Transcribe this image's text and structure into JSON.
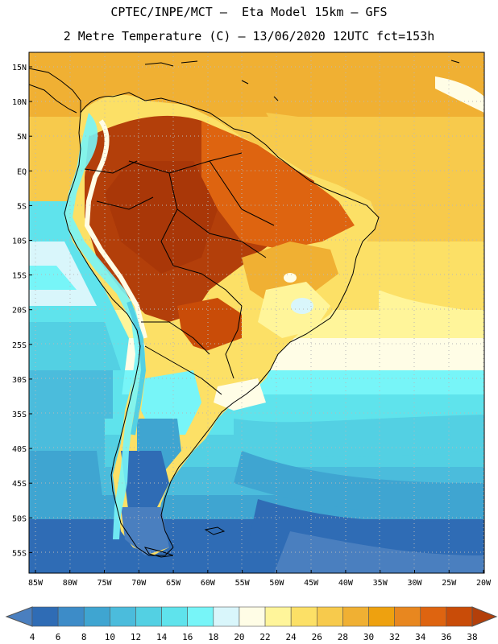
{
  "header": {
    "title_line1": "CPTEC/INPE/MCT –  Eta Model 15km – GFS",
    "title_line2": "2 Metre Temperature (C) – 13/06/2020 12UTC fct=153h"
  },
  "map": {
    "region": "South America",
    "variable": "2 Metre Temperature (C)",
    "lat_labels": [
      "15N",
      "10N",
      "5N",
      "EQ",
      "5S",
      "10S",
      "15S",
      "20S",
      "25S",
      "30S",
      "35S",
      "40S",
      "45S",
      "50S",
      "55S"
    ],
    "lon_labels": [
      "85W",
      "80W",
      "75W",
      "70W",
      "65W",
      "60W",
      "55W",
      "50W",
      "45W",
      "40W",
      "35W",
      "30W",
      "25W",
      "20W"
    ]
  },
  "colorbar": {
    "labels": [
      "4",
      "6",
      "8",
      "10",
      "12",
      "14",
      "16",
      "18",
      "20",
      "22",
      "24",
      "26",
      "28",
      "30",
      "32",
      "34",
      "36",
      "38"
    ],
    "colors": [
      "#4a7fbf",
      "#2f6cb5",
      "#3d8cc8",
      "#3fa5d1",
      "#4bbcdc",
      "#53d0e3",
      "#5fe3ec",
      "#77f5f8",
      "#d9f6fb",
      "#fffde6",
      "#fff59a",
      "#fce066",
      "#f7ca4c",
      "#f0b033",
      "#eea10f",
      "#e8871f",
      "#de6410",
      "#c94c08",
      "#b33f0a"
    ]
  },
  "colors": {
    "coast": "#000000",
    "grid": "#b8b8b8"
  }
}
